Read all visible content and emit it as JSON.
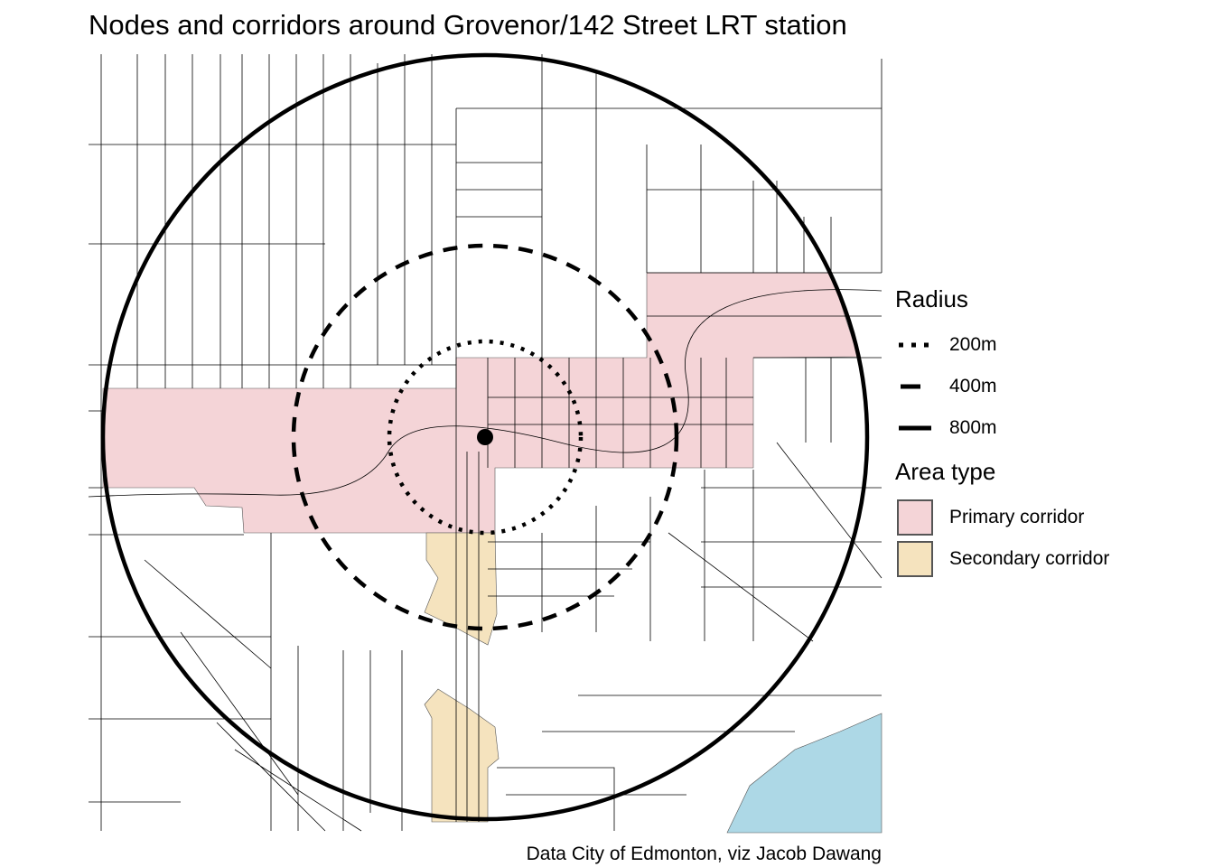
{
  "title": "Nodes and corridors around Grovenor/142 Street LRT station",
  "caption": "Data City of Edmonton, viz Jacob Dawang",
  "legend": {
    "radius_title": "Radius",
    "radius_items": [
      {
        "label": "200m",
        "style": "dotted"
      },
      {
        "label": "400m",
        "style": "dashed"
      },
      {
        "label": "800m",
        "style": "solid"
      }
    ],
    "area_title": "Area type",
    "area_items": [
      {
        "label": "Primary corridor",
        "color": "#F4D4D7"
      },
      {
        "label": "Secondary corridor",
        "color": "#F5E3BE"
      }
    ]
  },
  "colors": {
    "primary": "#F4D4D7",
    "secondary": "#F5E3BE",
    "water": "#ADD8E6",
    "streets": "#000000"
  }
}
